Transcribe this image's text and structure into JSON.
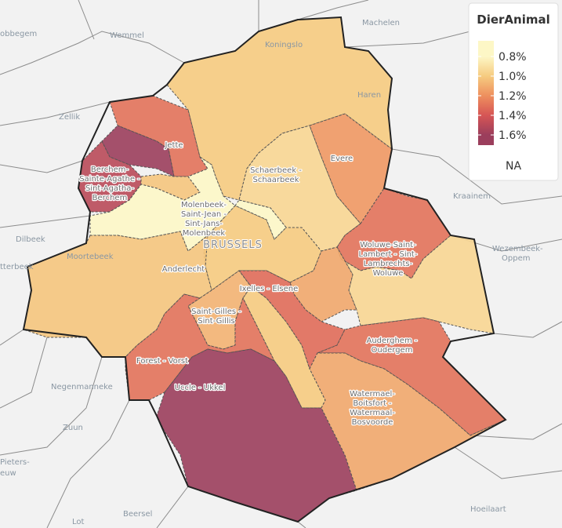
{
  "legend": {
    "title": "DierAnimal",
    "ticks": [
      {
        "value": 0.8,
        "label": "0.8%"
      },
      {
        "value": 1.0,
        "label": "1.0%"
      },
      {
        "value": 1.2,
        "label": "1.2%"
      },
      {
        "value": 1.4,
        "label": "1.4%"
      },
      {
        "value": 1.6,
        "label": "1.6%"
      }
    ],
    "colors": [
      "#fdf7c6",
      "#f6cb80",
      "#ee8f5e",
      "#d65555",
      "#9b3e5c"
    ],
    "na_label": "NA"
  },
  "big_label": "BRUSSELS",
  "places": [
    "obbegem",
    "Wemmel",
    "Machelen",
    "Koningslo",
    "Haren",
    "Zellik",
    "Dilbeek",
    "Kraainem",
    "Wezembeek-",
    "Oppem",
    "Moortebeek",
    "tterbeek",
    "Negenmanneke",
    "Zuun",
    "Pieters-",
    "euw",
    "Beersel",
    "Hoeilaart",
    "Lot"
  ],
  "regions": [
    {
      "label": null,
      "value": 1.0
    },
    {
      "label": [
        "Jette"
      ],
      "value": 1.3
    },
    {
      "label": null,
      "value": 1.62
    },
    {
      "label": [
        "Berchem-",
        "Sainte-Agathe -",
        "Sint-Agatha-",
        "Berchem"
      ],
      "value": 1.5
    },
    {
      "label": null,
      "value": 1.02
    },
    {
      "label": [
        "Molenbeek-",
        "Saint-Jean -",
        "Sint-Jans-",
        "Molenbeek"
      ],
      "value": 0.8
    },
    {
      "label": [
        "Schaerbeek -",
        "Schaarbeek"
      ],
      "value": 0.95
    },
    {
      "label": null,
      "value": 0.8
    },
    {
      "label": [
        "Evere"
      ],
      "value": 1.17
    },
    {
      "label": [
        "Woluwe-Saint-",
        "Lambert - Sint-",
        "Lambrechts-",
        "Woluwe"
      ],
      "value": 1.3
    },
    {
      "label": null,
      "value": 0.95
    },
    {
      "label": null,
      "value": 1.12
    },
    {
      "label": [
        "Ixelles - Elsene"
      ],
      "value": 1.32
    },
    {
      "label": [
        "Anderlecht"
      ],
      "value": 1.02
    },
    {
      "label": [
        "Saint-Gilles -",
        "Sint-Gillis"
      ],
      "value": 1.08
    },
    {
      "label": [
        "Forest - Vorst"
      ],
      "value": 1.3
    },
    {
      "label": [
        "Uccle - Ukkel"
      ],
      "value": 1.62
    },
    {
      "label": [
        "Auderghem -",
        "Oudergem"
      ],
      "value": 1.3
    },
    {
      "label": [
        "Watermael-",
        "Boitsfort -",
        "Watermaal-",
        "Bosvoorde"
      ],
      "value": 1.12
    }
  ]
}
